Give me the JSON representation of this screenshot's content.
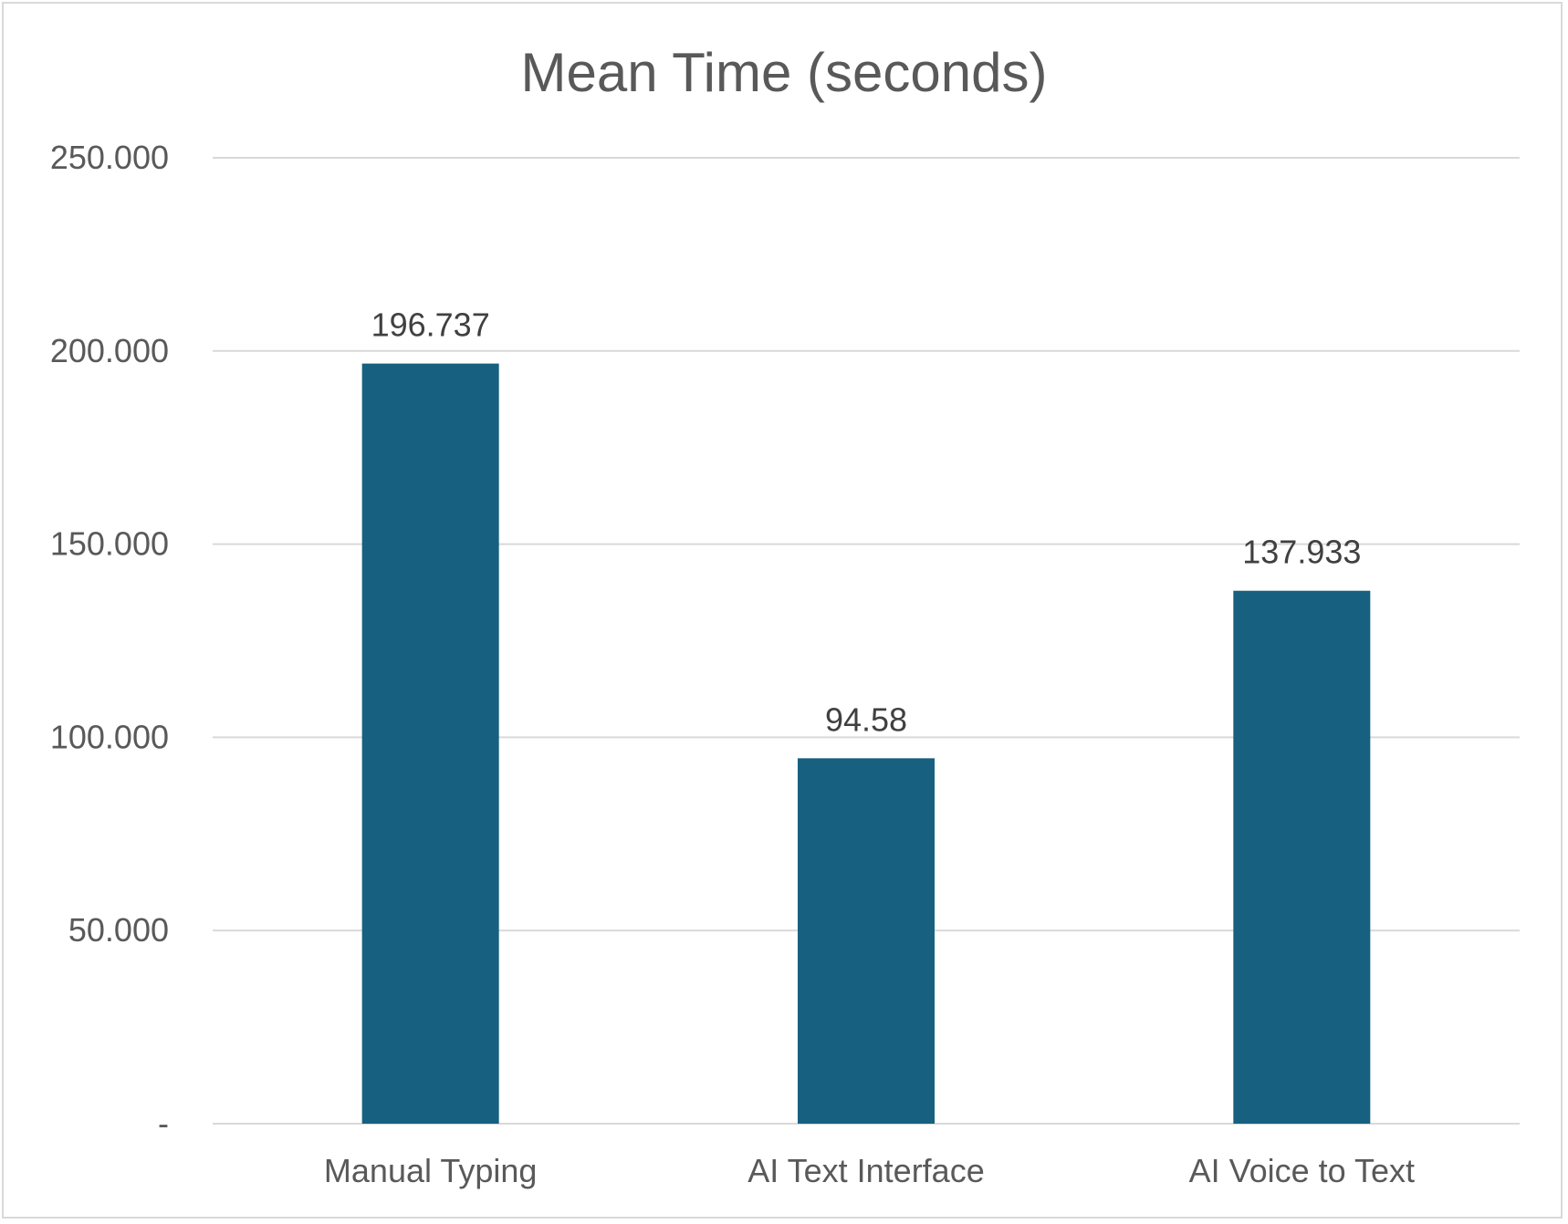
{
  "chart_data": {
    "type": "bar",
    "title": "Mean Time (seconds)",
    "xlabel": "",
    "ylabel": "",
    "categories": [
      "Manual Typing",
      "AI Text Interface",
      "AI Voice to Text"
    ],
    "values": [
      196.737,
      94.58,
      137.933
    ],
    "data_labels": [
      "196.737",
      "94.58",
      "137.933"
    ],
    "ylim": [
      0,
      250
    ],
    "y_ticks": [
      0,
      50,
      100,
      150,
      200,
      250
    ],
    "y_tick_labels": [
      "-",
      "50.000",
      "100.000",
      "150.000",
      "200.000",
      "250.000"
    ],
    "grid": true,
    "legend": "none",
    "colors": {
      "bar": "#17607f",
      "grid": "#d9d9d9",
      "text": "#595959",
      "label": "#404040"
    }
  }
}
